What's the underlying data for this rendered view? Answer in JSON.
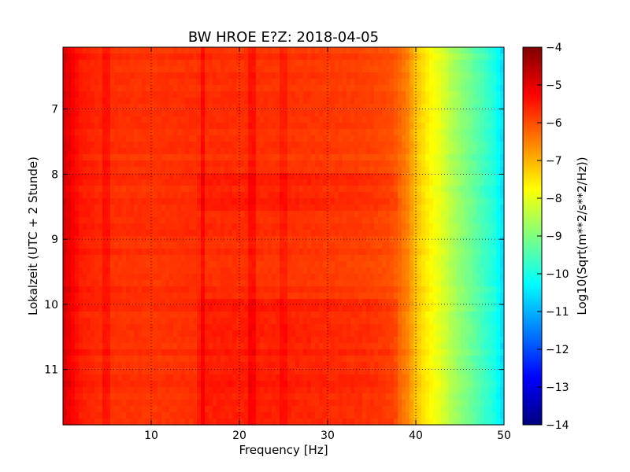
{
  "chart_data": {
    "type": "heatmap",
    "title": "BW HROE E?Z: 2018-04-05",
    "xlabel": "Frequency [Hz]",
    "ylabel": "Lokalzeit (UTC + 2 Stunde)",
    "xlim": [
      0,
      50
    ],
    "ylim": [
      11.85,
      6.05
    ],
    "y_inverted": true,
    "xticks": [
      10,
      20,
      30,
      40,
      50
    ],
    "yticks": [
      7,
      8,
      9,
      10,
      11
    ],
    "grid": true,
    "colorbar": {
      "label": "Log10(Sqrt(m**2/s**2/Hz))",
      "range": [
        -14,
        -4
      ],
      "ticks": [
        -4,
        -5,
        -6,
        -7,
        -8,
        -9,
        -10,
        -11,
        -12,
        -13,
        -14
      ],
      "colormap": "jet"
    },
    "profile": {
      "frequency_hz": [
        0,
        0.5,
        1,
        2,
        5,
        10,
        15,
        20,
        25,
        30,
        35,
        37,
        38,
        39,
        40,
        41,
        42,
        43,
        44,
        45,
        46,
        47,
        48,
        49,
        49.6,
        50
      ],
      "level": [
        -4.9,
        -5.0,
        -5.2,
        -5.5,
        -5.7,
        -5.75,
        -5.7,
        -5.7,
        -5.75,
        -5.8,
        -5.9,
        -6.0,
        -6.2,
        -6.5,
        -7.1,
        -7.5,
        -7.8,
        -8.1,
        -8.5,
        -8.8,
        -9.1,
        -9.4,
        -9.7,
        -10.0,
        -10.4,
        -10.6
      ]
    },
    "features": [
      {
        "kind": "vertical_line",
        "frequency_hz": 15.8,
        "delta": 0.35
      },
      {
        "kind": "vertical_line",
        "frequency_hz": 21.4,
        "delta": 0.3
      },
      {
        "kind": "vertical_line",
        "frequency_hz": 5.0,
        "delta": 0.25
      },
      {
        "kind": "vertical_line",
        "frequency_hz": 25.0,
        "delta": 0.2
      },
      {
        "kind": "horizontal_band",
        "time": [
          9.95,
          11.85
        ],
        "frequency_hz": [
          15,
          38
        ],
        "delta": 0.25
      },
      {
        "kind": "horizontal_band",
        "time": [
          8.0,
          8.6
        ],
        "frequency_hz": [
          15,
          38
        ],
        "delta": 0.2
      }
    ]
  }
}
